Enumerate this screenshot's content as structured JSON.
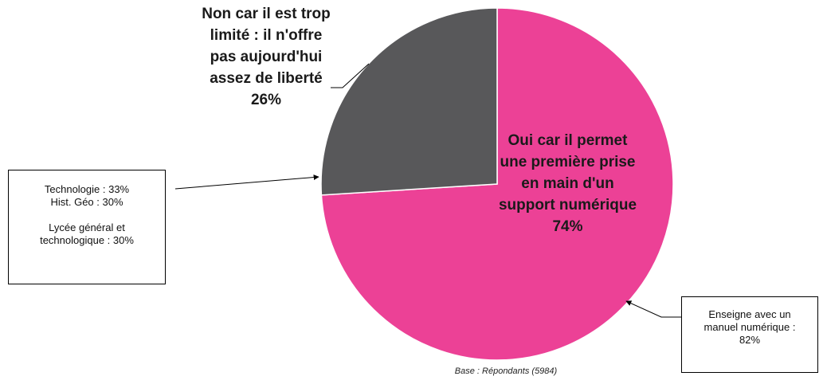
{
  "chart_data": {
    "type": "pie",
    "categories": [
      "Oui car il permet une première prise en main d'un support numérique",
      "Non car il est trop limité : il n'offre pas aujourd'hui assez de liberté"
    ],
    "values": [
      74,
      26
    ],
    "value_labels": [
      "74%",
      "26%"
    ],
    "colors": [
      "#ec4196",
      "#58585a"
    ],
    "annotations": [
      {
        "lines": [
          "Technologie : 33%",
          "Hist. Géo : 30%",
          "Lycée général et technologique : 30%"
        ]
      },
      {
        "lines": [
          "Enseigne avec un manuel numérique : 82%"
        ]
      }
    ],
    "footnote": "Base : Répondants (5984)"
  }
}
